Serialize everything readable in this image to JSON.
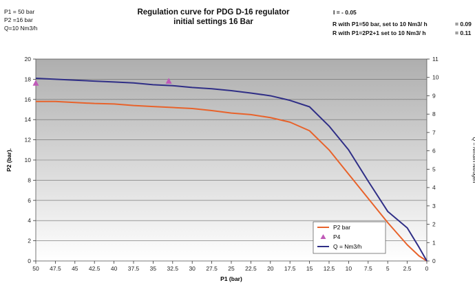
{
  "header": {
    "settings_lines": [
      "P1 = 50 bar",
      "P2 =16  bar",
      "Q=10 Nm3/h"
    ],
    "title_line1": "Regulation curve  for PDG D-16 regulator",
    "title_line2": "initial settings 16 Bar",
    "i_label": "I = - 0.05",
    "r1_label": "R with P1=50 bar, set to 10 Nm3/ h",
    "r1_value": "= 0.09",
    "r2_label": "R with P1=2P2+1 set to 10 Nm3/ h",
    "r2_value": "= 0.11"
  },
  "chart_data": {
    "type": "line",
    "xlabel": "P1 (bar)",
    "ylabel": "P2 (bar).",
    "y2label": "Q = Nm3/h Nitrogen",
    "xlim": [
      50,
      0
    ],
    "ylim": [
      0,
      20
    ],
    "y2lim": [
      0,
      11
    ],
    "x_ticks": [
      "50",
      "47.5",
      "45",
      "42.5",
      "40",
      "37.5",
      "35",
      "32.5",
      "30",
      "27.5",
      "25",
      "22.5",
      "20",
      "17.5",
      "15",
      "12.5",
      "10",
      "7.5",
      "5",
      "2.5",
      "0"
    ],
    "y_ticks": [
      "0",
      "2",
      "4",
      "6",
      "8",
      "10",
      "12",
      "14",
      "16",
      "18",
      "20"
    ],
    "y2_ticks": [
      "0",
      "1",
      "2",
      "3",
      "4",
      "5",
      "6",
      "7",
      "8",
      "9",
      "10",
      "11"
    ],
    "grid": true,
    "legend_position": "bottom-right",
    "series": [
      {
        "name": "P2  bar",
        "axis": "left",
        "color": "#e8622a",
        "x": [
          50,
          47.5,
          45,
          42.5,
          40,
          37.5,
          35,
          32.5,
          30,
          27.5,
          25,
          22.5,
          20,
          17.5,
          15,
          12.5,
          10,
          7.5,
          5,
          2.5,
          1,
          0
        ],
        "y": [
          15.8,
          15.8,
          15.7,
          15.6,
          15.55,
          15.4,
          15.3,
          15.2,
          15.1,
          14.9,
          14.65,
          14.5,
          14.2,
          13.75,
          12.9,
          11.0,
          8.6,
          6.2,
          3.8,
          1.6,
          0.5,
          0.0
        ]
      },
      {
        "name": "P4",
        "axis": "left",
        "color": "#c05ab8",
        "marker": "triangle",
        "x": [
          50,
          33
        ],
        "y": [
          17.6,
          17.8
        ]
      },
      {
        "name": "Q = Nm3/h",
        "axis": "right",
        "color": "#2f2e86",
        "x": [
          50,
          47.5,
          45,
          42.5,
          40,
          37.5,
          35,
          32.5,
          30,
          27.5,
          25,
          22.5,
          20,
          17.5,
          15,
          12.5,
          10,
          7.5,
          5,
          2.5,
          1,
          0
        ],
        "y": [
          9.95,
          9.9,
          9.85,
          9.8,
          9.75,
          9.7,
          9.6,
          9.55,
          9.45,
          9.38,
          9.28,
          9.15,
          9.0,
          8.75,
          8.4,
          7.35,
          6.05,
          4.35,
          2.7,
          1.8,
          0.75,
          0.0
        ]
      }
    ]
  }
}
